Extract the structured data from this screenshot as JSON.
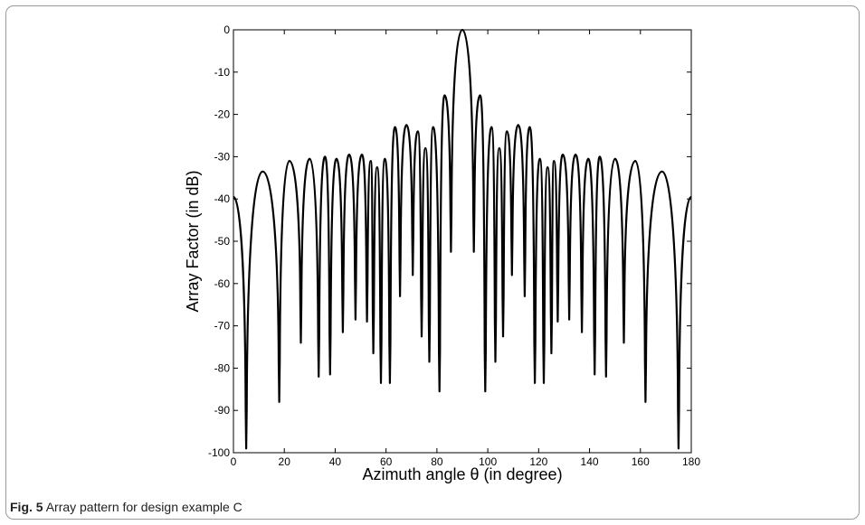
{
  "chart_data": {
    "type": "line",
    "xlabel": "Azimuth angle θ (in degree)",
    "ylabel": "Array Factor (in dB)",
    "xlim": [
      0,
      180
    ],
    "ylim": [
      -100,
      0
    ],
    "xticks": [
      "0",
      "20",
      "40",
      "60",
      "80",
      "100",
      "120",
      "140",
      "160",
      "180"
    ],
    "yticks": [
      "0",
      "-10",
      "-20",
      "-30",
      "-40",
      "-50",
      "-60",
      "-70",
      "-80",
      "-90",
      "-100"
    ],
    "grid": false,
    "line_color": "#000000",
    "nulls": [
      {
        "x": 5,
        "y": -99
      },
      {
        "x": 18,
        "y": -88
      },
      {
        "x": 26.5,
        "y": -74
      },
      {
        "x": 33.5,
        "y": -82
      },
      {
        "x": 38,
        "y": -81.5
      },
      {
        "x": 43,
        "y": -71.5
      },
      {
        "x": 48,
        "y": -68.5
      },
      {
        "x": 52.5,
        "y": -69
      },
      {
        "x": 55,
        "y": -76.5
      },
      {
        "x": 58,
        "y": -83.5
      },
      {
        "x": 61.5,
        "y": -83.5
      },
      {
        "x": 65.5,
        "y": -63
      },
      {
        "x": 70.5,
        "y": -58
      },
      {
        "x": 74,
        "y": -72.5
      },
      {
        "x": 77,
        "y": -78.5
      },
      {
        "x": 81,
        "y": -85.5
      },
      {
        "x": 85.5,
        "y": -52.5
      },
      {
        "x": 94.5,
        "y": -52.5
      },
      {
        "x": 99,
        "y": -85.5
      },
      {
        "x": 103,
        "y": -78.5
      },
      {
        "x": 106,
        "y": -72.5
      },
      {
        "x": 109.5,
        "y": -58
      },
      {
        "x": 114.5,
        "y": -63
      },
      {
        "x": 118.5,
        "y": -83.5
      },
      {
        "x": 122,
        "y": -83.5
      },
      {
        "x": 125,
        "y": -76.5
      },
      {
        "x": 127.5,
        "y": -69
      },
      {
        "x": 132,
        "y": -68.5
      },
      {
        "x": 137,
        "y": -71.5
      },
      {
        "x": 142,
        "y": -81.5
      },
      {
        "x": 146.5,
        "y": -82
      },
      {
        "x": 153.5,
        "y": -74
      },
      {
        "x": 162,
        "y": -88
      },
      {
        "x": 175,
        "y": -99
      }
    ],
    "lobes": [
      {
        "x": 0,
        "y": -39.5
      },
      {
        "x": 11.5,
        "y": -33.5
      },
      {
        "x": 22,
        "y": -31
      },
      {
        "x": 30,
        "y": -30.5
      },
      {
        "x": 36,
        "y": -30
      },
      {
        "x": 40.5,
        "y": -30.5
      },
      {
        "x": 45.5,
        "y": -29.5
      },
      {
        "x": 50.5,
        "y": -29.5
      },
      {
        "x": 54,
        "y": -31
      },
      {
        "x": 56.5,
        "y": -32.5
      },
      {
        "x": 59.5,
        "y": -30.5
      },
      {
        "x": 63.5,
        "y": -23
      },
      {
        "x": 68,
        "y": -22.5
      },
      {
        "x": 72.5,
        "y": -24
      },
      {
        "x": 75.5,
        "y": -28
      },
      {
        "x": 78.5,
        "y": -23
      },
      {
        "x": 83,
        "y": -15.5
      },
      {
        "x": 90,
        "y": 0
      },
      {
        "x": 97,
        "y": -15.5
      },
      {
        "x": 101.5,
        "y": -23
      },
      {
        "x": 104.5,
        "y": -28
      },
      {
        "x": 107.5,
        "y": -24
      },
      {
        "x": 112,
        "y": -22.5
      },
      {
        "x": 116.5,
        "y": -23
      },
      {
        "x": 120.5,
        "y": -30.5
      },
      {
        "x": 123.5,
        "y": -32.5
      },
      {
        "x": 126,
        "y": -31
      },
      {
        "x": 129.5,
        "y": -29.5
      },
      {
        "x": 134.5,
        "y": -29.5
      },
      {
        "x": 139.5,
        "y": -30.5
      },
      {
        "x": 144,
        "y": -30
      },
      {
        "x": 150,
        "y": -30.5
      },
      {
        "x": 158,
        "y": -31
      },
      {
        "x": 168.5,
        "y": -33.5
      },
      {
        "x": 180,
        "y": -39.5
      }
    ]
  },
  "caption": {
    "label": "Fig. 5",
    "text": "Array pattern for design example C"
  }
}
